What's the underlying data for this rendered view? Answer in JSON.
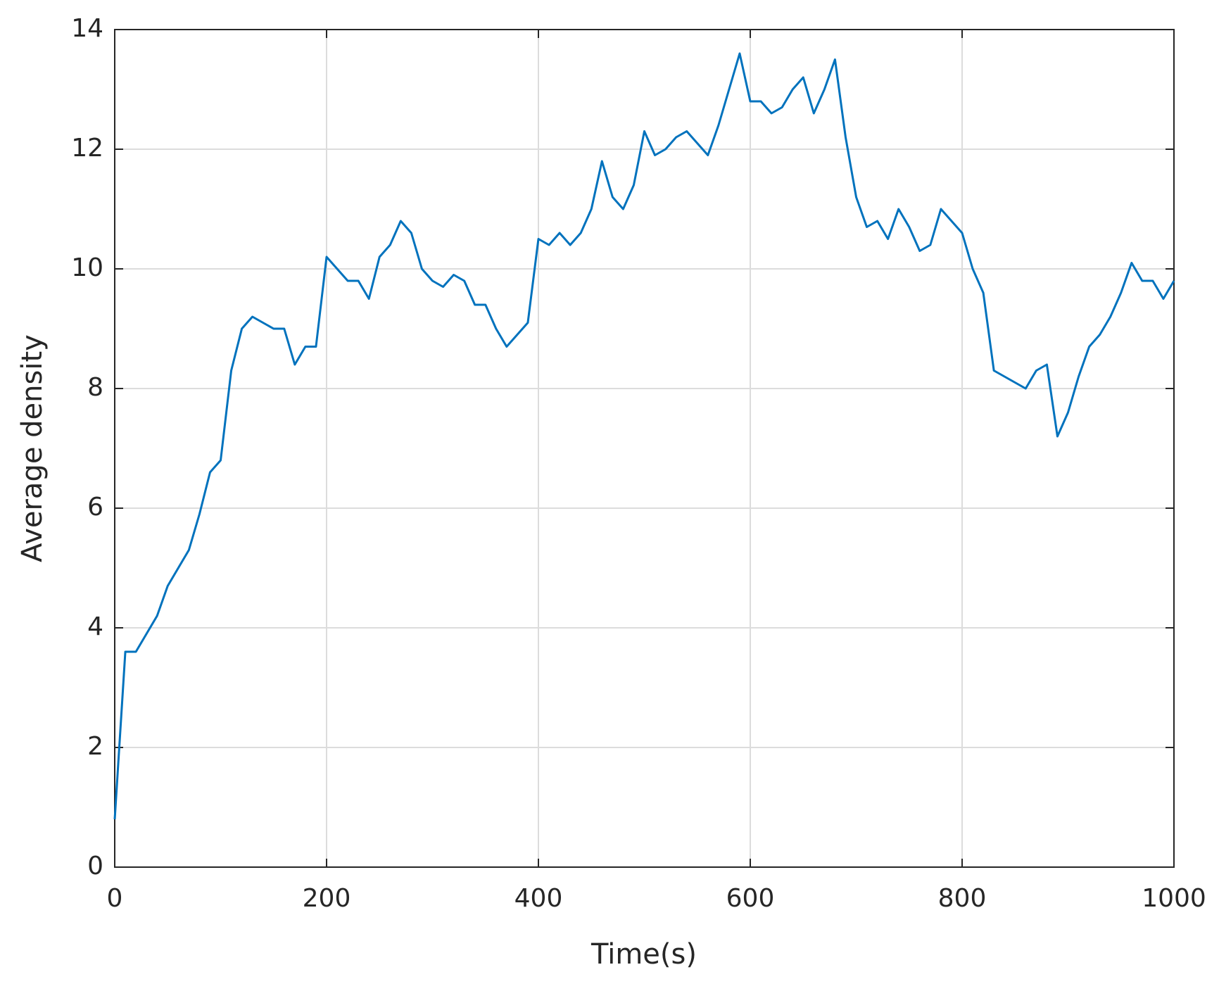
{
  "chart_data": {
    "type": "line",
    "xlabel": "Time(s)",
    "ylabel": "Average density",
    "x": [
      0,
      10,
      20,
      30,
      40,
      50,
      60,
      70,
      80,
      90,
      100,
      110,
      120,
      130,
      140,
      150,
      160,
      170,
      180,
      190,
      200,
      210,
      220,
      230,
      240,
      250,
      260,
      270,
      280,
      290,
      300,
      310,
      320,
      330,
      340,
      350,
      360,
      370,
      380,
      390,
      400,
      410,
      420,
      430,
      440,
      450,
      460,
      470,
      480,
      490,
      500,
      510,
      520,
      530,
      540,
      550,
      560,
      570,
      580,
      590,
      600,
      610,
      620,
      630,
      640,
      650,
      660,
      670,
      680,
      690,
      700,
      710,
      720,
      730,
      740,
      750,
      760,
      770,
      780,
      790,
      800,
      810,
      820,
      830,
      840,
      850,
      860,
      870,
      880,
      890,
      900,
      910,
      920,
      930,
      940,
      950,
      960,
      970,
      980,
      990,
      1000
    ],
    "series": [
      {
        "color": "#0072bd",
        "values": [
          0.8,
          3.6,
          3.6,
          3.9,
          4.2,
          4.7,
          5.0,
          5.3,
          5.9,
          6.6,
          6.8,
          8.3,
          9.0,
          9.2,
          9.1,
          9.0,
          9.0,
          8.4,
          8.7,
          8.7,
          10.2,
          10.0,
          9.8,
          9.8,
          9.5,
          10.2,
          10.4,
          10.8,
          10.6,
          10.0,
          9.8,
          9.7,
          9.9,
          9.8,
          9.4,
          9.4,
          9.0,
          8.7,
          8.9,
          9.1,
          10.5,
          10.4,
          10.6,
          10.4,
          10.6,
          11.0,
          11.8,
          11.2,
          11.0,
          11.4,
          12.3,
          11.9,
          12.0,
          12.2,
          12.3,
          12.1,
          11.9,
          12.4,
          13.0,
          13.6,
          12.8,
          12.8,
          12.6,
          12.7,
          13.0,
          13.2,
          12.6,
          13.0,
          13.5,
          12.2,
          11.2,
          10.7,
          10.8,
          10.5,
          11.0,
          10.7,
          10.3,
          10.4,
          11.0,
          10.8,
          10.6,
          10.0,
          9.6,
          8.3,
          8.2,
          8.1,
          8.0,
          8.3,
          8.4,
          7.2,
          7.6,
          8.2,
          8.7,
          8.9,
          9.2,
          9.6,
          10.1,
          9.8,
          9.8,
          9.5,
          9.8
        ]
      }
    ],
    "xlim": [
      0,
      1000
    ],
    "xticks": [
      0,
      200,
      400,
      600,
      800,
      1000
    ],
    "ylim": [
      0,
      14
    ],
    "yticks": [
      0,
      2,
      4,
      6,
      8,
      10,
      12,
      14
    ],
    "grid": true
  }
}
